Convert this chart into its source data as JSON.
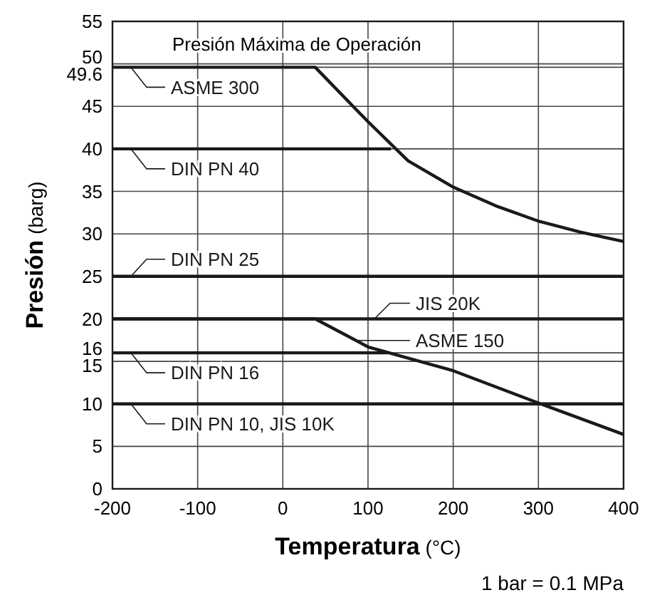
{
  "chart_data": {
    "type": "line",
    "xlabel": "Temperatura (°C)",
    "ylabel": "Presión (barg)",
    "xlim": [
      -200,
      400
    ],
    "ylim": [
      0,
      55
    ],
    "xticks": [
      -200,
      -100,
      0,
      100,
      200,
      300,
      400
    ],
    "yticks": [
      0,
      5,
      10,
      15,
      16,
      20,
      25,
      30,
      35,
      40,
      45,
      49.6,
      50,
      55
    ],
    "grid": true,
    "legend": "left",
    "marker": "none",
    "line_style": "solid",
    "series": [
      {
        "name": "ASME 300",
        "color": "#1a1a1a",
        "x": [
          -200,
          38,
          100,
          147,
          200,
          250,
          300,
          350,
          400
        ],
        "values": [
          49.6,
          49.6,
          43.2,
          38.6,
          35.5,
          33.3,
          31.5,
          30.2,
          29.1
        ]
      },
      {
        "name": "DIN PN 40",
        "color": "#1a1a1a",
        "x": [
          -200,
          127
        ],
        "values": [
          40,
          40
        ]
      },
      {
        "name": "DIN PN 25",
        "color": "#1a1a1a",
        "x": [
          -200,
          400
        ],
        "values": [
          25,
          25
        ]
      },
      {
        "name": "JIS 20K",
        "color": "#1a1a1a",
        "x": [
          -200,
          400
        ],
        "values": [
          20,
          20
        ]
      },
      {
        "name": "ASME 150",
        "color": "#1a1a1a",
        "x": [
          -200,
          38,
          100,
          200,
          300,
          400
        ],
        "values": [
          20,
          20,
          16.7,
          13.9,
          10.1,
          6.4
        ]
      },
      {
        "name": "DIN PN 16",
        "color": "#1a1a1a",
        "x": [
          -200,
          124
        ],
        "values": [
          16,
          16
        ]
      },
      {
        "name": "DIN PN 10, JIS 10K",
        "color": "#1a1a1a",
        "x": [
          -200,
          400
        ],
        "values": [
          10,
          10
        ]
      }
    ],
    "annotations": [
      "Presión Máxima de Operación",
      "1 bar = 0.1 MPa"
    ]
  }
}
